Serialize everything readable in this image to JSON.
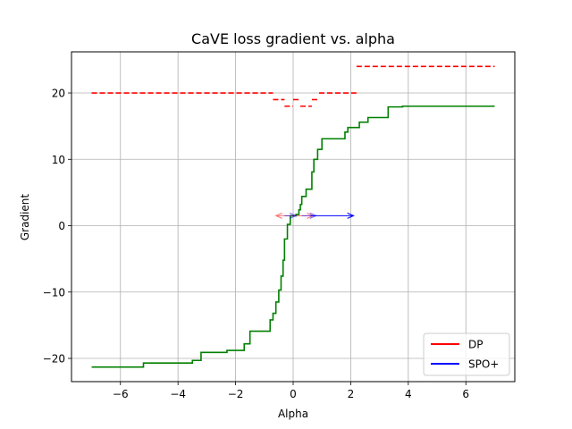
{
  "chart_data": {
    "type": "line",
    "title": "CaVE loss gradient vs. alpha",
    "xlabel": "Alpha",
    "ylabel": "Gradient",
    "xlim": [
      -7.7,
      7.7
    ],
    "ylim": [
      -23.5,
      26.2
    ],
    "xticks": [
      -6,
      -4,
      -2,
      0,
      2,
      4,
      6
    ],
    "yticks": [
      -20,
      -10,
      0,
      10,
      20
    ],
    "xtick_labels": [
      "−6",
      "−4",
      "−2",
      "0",
      "2",
      "4",
      "6"
    ],
    "ytick_labels": [
      "−20",
      "−10",
      "0",
      "10",
      "20"
    ],
    "grid": true,
    "legend_position": "lower right",
    "legend": [
      {
        "label": "DP",
        "color": "#ff0000"
      },
      {
        "label": "SPO+",
        "color": "#0000ff"
      }
    ],
    "series": [
      {
        "color": "#008000",
        "style": "solid-step",
        "points": [
          [
            -7.0,
            -21.3
          ],
          [
            -5.2,
            -21.3
          ],
          [
            -5.2,
            -20.7
          ],
          [
            -3.5,
            -20.7
          ],
          [
            -3.5,
            -20.3
          ],
          [
            -3.2,
            -20.3
          ],
          [
            -3.2,
            -19.1
          ],
          [
            -2.3,
            -19.1
          ],
          [
            -2.3,
            -18.8
          ],
          [
            -1.7,
            -18.8
          ],
          [
            -1.7,
            -17.8
          ],
          [
            -1.5,
            -17.8
          ],
          [
            -1.5,
            -15.9
          ],
          [
            -0.8,
            -15.9
          ],
          [
            -0.8,
            -14.2
          ],
          [
            -0.7,
            -14.2
          ],
          [
            -0.7,
            -13.2
          ],
          [
            -0.6,
            -13.2
          ],
          [
            -0.6,
            -11.5
          ],
          [
            -0.5,
            -11.5
          ],
          [
            -0.5,
            -9.7
          ],
          [
            -0.42,
            -9.7
          ],
          [
            -0.42,
            -7.6
          ],
          [
            -0.35,
            -7.6
          ],
          [
            -0.35,
            -5.2
          ],
          [
            -0.3,
            -5.2
          ],
          [
            -0.3,
            -2.0
          ],
          [
            -0.2,
            -2.0
          ],
          [
            -0.2,
            0.2
          ],
          [
            -0.1,
            0.2
          ],
          [
            -0.1,
            1.5
          ],
          [
            0.1,
            1.5
          ],
          [
            0.1,
            1.7
          ],
          [
            0.2,
            1.7
          ],
          [
            0.2,
            2.4
          ],
          [
            0.25,
            2.4
          ],
          [
            0.25,
            3.2
          ],
          [
            0.3,
            3.2
          ],
          [
            0.3,
            4.4
          ],
          [
            0.45,
            4.4
          ],
          [
            0.45,
            5.5
          ],
          [
            0.65,
            5.5
          ],
          [
            0.65,
            8.1
          ],
          [
            0.72,
            8.1
          ],
          [
            0.72,
            10.0
          ],
          [
            0.85,
            10.0
          ],
          [
            0.85,
            11.5
          ],
          [
            1.0,
            11.5
          ],
          [
            1.0,
            13.1
          ],
          [
            1.8,
            13.1
          ],
          [
            1.8,
            14.1
          ],
          [
            1.9,
            14.1
          ],
          [
            1.9,
            14.8
          ],
          [
            2.3,
            14.8
          ],
          [
            2.3,
            15.6
          ],
          [
            2.6,
            15.6
          ],
          [
            2.6,
            16.3
          ],
          [
            3.3,
            16.3
          ],
          [
            3.3,
            17.9
          ],
          [
            3.8,
            17.9
          ],
          [
            3.8,
            18.0
          ],
          [
            7.0,
            18.0
          ]
        ]
      }
    ],
    "dp_segments": [
      [
        -7.0,
        20.0,
        -0.7,
        20.0
      ],
      [
        -0.7,
        19.0,
        -0.3,
        19.0
      ],
      [
        -0.3,
        18.0,
        0.0,
        18.0
      ],
      [
        0.0,
        19.0,
        0.25,
        19.0
      ],
      [
        0.25,
        18.0,
        0.65,
        18.0
      ],
      [
        0.65,
        19.0,
        0.9,
        19.0
      ],
      [
        0.9,
        20.0,
        2.2,
        20.0
      ],
      [
        2.2,
        24.0,
        7.0,
        24.0
      ]
    ],
    "arrows": [
      {
        "color": "#ff0000",
        "alpha": 0.55,
        "x": 0.0,
        "y": 1.5,
        "dx": -0.6
      },
      {
        "color": "#ff0000",
        "alpha": 0.55,
        "x": 0.0,
        "y": 1.5,
        "dx": 0.7
      },
      {
        "color": "#0000ff",
        "alpha": 0.55,
        "x": -0.3,
        "y": 1.5,
        "dx": 0.4
      },
      {
        "color": "#0000ff",
        "alpha": 0.55,
        "x": 0.3,
        "y": 1.5,
        "dx": 0.5
      },
      {
        "color": "#0000ff",
        "alpha": 1.0,
        "x": 0.6,
        "y": 1.5,
        "dx": 1.5
      }
    ]
  }
}
